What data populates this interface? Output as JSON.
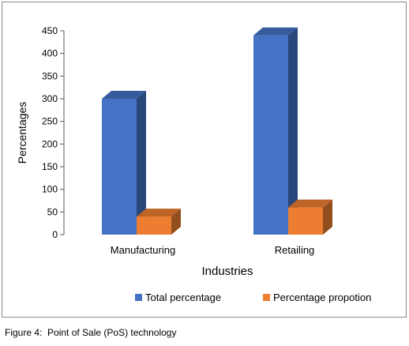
{
  "chart_data": {
    "type": "bar",
    "style": "3d-clustered-column",
    "categories": [
      "Manufacturing",
      "Retailing"
    ],
    "series": [
      {
        "name": "Total percentage",
        "values": [
          300,
          440
        ],
        "color": "#4472C4"
      },
      {
        "name": "Percentage propotion",
        "values": [
          40,
          60
        ],
        "color": "#ED7D31"
      }
    ],
    "xlabel": "Industries",
    "ylabel": "Percentages",
    "ylim": [
      0,
      450
    ],
    "yticks": [
      "0",
      "50",
      "100",
      "150",
      "200",
      "250",
      "300",
      "350",
      "400",
      "450"
    ],
    "grid": false,
    "legend_position": "bottom"
  },
  "caption": "Figure 4:  Point of Sale (PoS) technology"
}
